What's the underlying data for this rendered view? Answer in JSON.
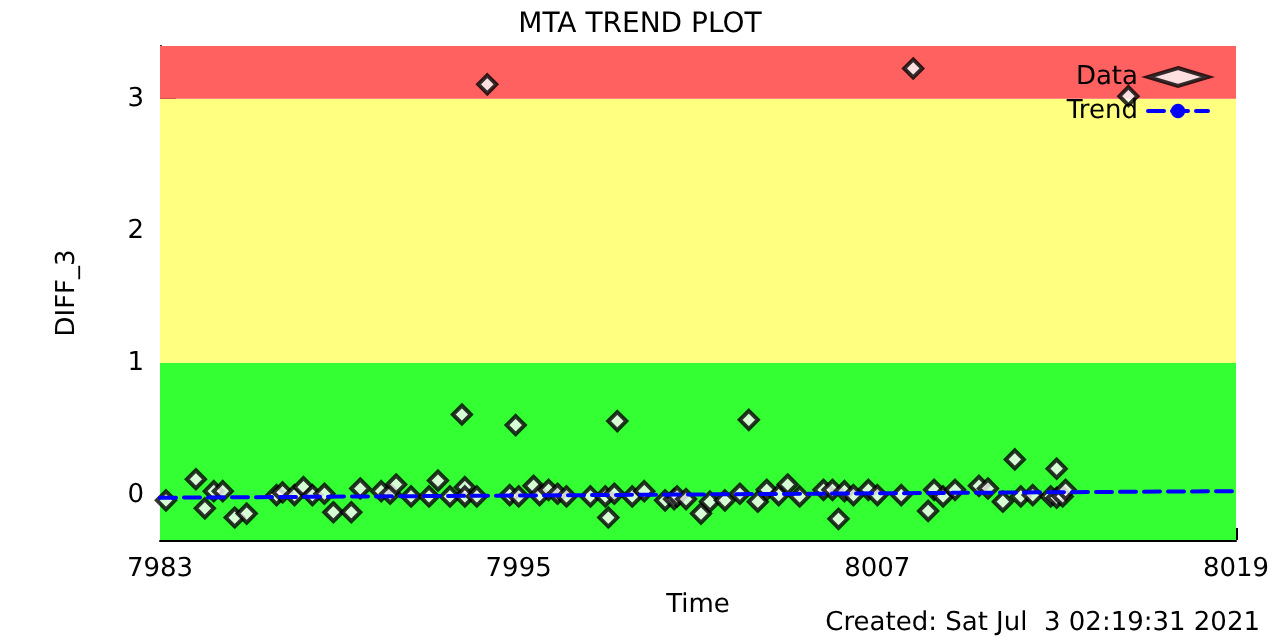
{
  "chart_data": {
    "type": "scatter",
    "title": "MTA TREND PLOT",
    "xlabel": "Time",
    "ylabel": "DIFF_3",
    "annotations": [
      "Created: Sat Jul  3 02:19:31 2021"
    ],
    "xlim": [
      7983,
      8019
    ],
    "xticks": [
      7983,
      7995,
      8007,
      8019
    ],
    "ylim": [
      -0.34,
      3.4
    ],
    "yticks": [
      0,
      1,
      2,
      3
    ],
    "bands": [
      {
        "axis": "y",
        "from": -0.34,
        "to": 1,
        "color": "#33ff33"
      },
      {
        "axis": "y",
        "from": 1,
        "to": 3,
        "color": "#ffff80"
      },
      {
        "axis": "y",
        "from": 3,
        "to": 3.4,
        "color": "#ff6060"
      }
    ],
    "legend": "top right",
    "grid": false,
    "series": [
      {
        "name": "Data",
        "marker": "diamond",
        "color": "#000000",
        "x": [
          7983.2,
          7984.2,
          7984.5,
          7984.8,
          7985.1,
          7985.5,
          7985.9,
          7986.9,
          7987.1,
          7987.5,
          7987.8,
          7988.1,
          7988.5,
          7988.8,
          7989.4,
          7989.7,
          7990.4,
          7990.7,
          7990.9,
          7991.4,
          7992.0,
          7992.3,
          7992.7,
          7993.1,
          7993.2,
          7993.2,
          7993.6,
          7993.95,
          7994.7,
          7994.9,
          7995.0,
          7995.5,
          7995.7,
          7996.0,
          7996.3,
          7996.6,
          7997.4,
          7997.9,
          7998.0,
          7998.2,
          7998.3,
          7998.8,
          7999.2,
          7999.9,
          8000.2,
          8000.3,
          8000.6,
          8001.1,
          8001.4,
          8001.9,
          8002.4,
          8002.7,
          8003.0,
          8003.3,
          8003.7,
          8004.0,
          8004.4,
          8005.2,
          8005.5,
          8005.7,
          8005.9,
          8006.2,
          8006.7,
          8007.0,
          8007.8,
          8008.2,
          8008.7,
          8008.9,
          8009.2,
          8009.6,
          8010.4,
          8010.7,
          8011.2,
          8011.6,
          8011.8,
          8012.2,
          8012.8,
          8013.0,
          8013.0,
          8013.2,
          8013.3,
          8015.4
        ],
        "values": [
          -0.04,
          0.12,
          -0.1,
          0.03,
          0.03,
          -0.17,
          -0.14,
          0,
          0.02,
          0,
          0.06,
          0,
          0.01,
          -0.13,
          -0.13,
          0.05,
          0.03,
          0.01,
          0.08,
          -0.01,
          -0.01,
          0.11,
          -0.01,
          0.61,
          0.06,
          -0.01,
          -0.01,
          3.11,
          0,
          0.53,
          -0.01,
          0.07,
          0,
          0.04,
          0.01,
          -0.01,
          -0.01,
          -0.01,
          -0.17,
          0.01,
          0.56,
          -0.01,
          0.03,
          -0.04,
          -0.03,
          -0.01,
          -0.03,
          -0.14,
          -0.05,
          -0.04,
          0.01,
          0.57,
          -0.05,
          0.04,
          0,
          0.08,
          -0.01,
          0.04,
          0.04,
          -0.18,
          0.03,
          0,
          0.04,
          0,
          0,
          3.23,
          -0.12,
          0.04,
          -0.01,
          0.04,
          0.07,
          0.05,
          -0.05,
          0.27,
          -0.01,
          0,
          -0.01,
          0.2,
          -0.02,
          -0.01,
          0.04,
          3.02
        ]
      },
      {
        "name": "Trend",
        "type": "line",
        "marker": "none",
        "line_style": "dashed",
        "color": "#0000ff",
        "x": [
          7983,
          8019
        ],
        "values": [
          -0.02,
          0.03
        ]
      }
    ]
  }
}
